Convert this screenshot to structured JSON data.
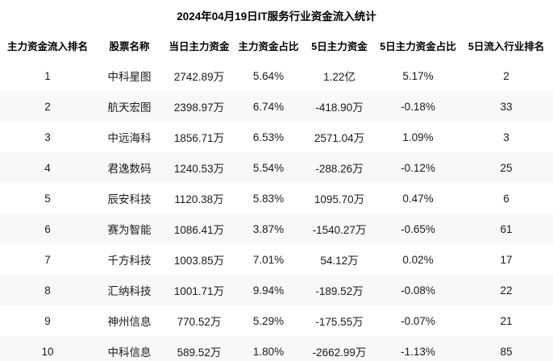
{
  "title": "2024年04月19日IT服务行业资金流入统计",
  "colors": {
    "row_alt_bg": "#f7f8fa",
    "text": "#1a1a1a",
    "title_text": "#000000"
  },
  "table": {
    "columns": [
      {
        "key": "rank",
        "label": "主力资金流入排名"
      },
      {
        "key": "name",
        "label": "股票名称"
      },
      {
        "key": "today_main",
        "label": "当日主力资金"
      },
      {
        "key": "main_pct",
        "label": "主力资金占比"
      },
      {
        "key": "five_day_main",
        "label": "5日主力资金"
      },
      {
        "key": "five_day_pct",
        "label": "5日主力资金占比"
      },
      {
        "key": "five_day_rank",
        "label": "5日流入行业排名"
      }
    ],
    "rows": [
      {
        "rank": "1",
        "name": "中科星图",
        "today_main": "2742.89万",
        "main_pct": "5.64%",
        "five_day_main": "1.22亿",
        "five_day_pct": "5.17%",
        "five_day_rank": "2"
      },
      {
        "rank": "2",
        "name": "航天宏图",
        "today_main": "2398.97万",
        "main_pct": "6.74%",
        "five_day_main": "-418.90万",
        "five_day_pct": "-0.18%",
        "five_day_rank": "33"
      },
      {
        "rank": "3",
        "name": "中远海科",
        "today_main": "1856.71万",
        "main_pct": "6.53%",
        "five_day_main": "2571.04万",
        "five_day_pct": "1.09%",
        "five_day_rank": "3"
      },
      {
        "rank": "4",
        "name": "君逸数码",
        "today_main": "1240.53万",
        "main_pct": "5.54%",
        "five_day_main": "-288.26万",
        "five_day_pct": "-0.12%",
        "five_day_rank": "25"
      },
      {
        "rank": "5",
        "name": "辰安科技",
        "today_main": "1120.38万",
        "main_pct": "5.83%",
        "five_day_main": "1095.70万",
        "five_day_pct": "0.47%",
        "five_day_rank": "6"
      },
      {
        "rank": "6",
        "name": "赛为智能",
        "today_main": "1086.41万",
        "main_pct": "3.87%",
        "five_day_main": "-1540.27万",
        "five_day_pct": "-0.65%",
        "five_day_rank": "61"
      },
      {
        "rank": "7",
        "name": "千方科技",
        "today_main": "1003.85万",
        "main_pct": "7.01%",
        "five_day_main": "54.12万",
        "five_day_pct": "0.02%",
        "five_day_rank": "17"
      },
      {
        "rank": "8",
        "name": "汇纳科技",
        "today_main": "1001.71万",
        "main_pct": "9.94%",
        "five_day_main": "-189.52万",
        "five_day_pct": "-0.08%",
        "five_day_rank": "22"
      },
      {
        "rank": "9",
        "name": "神州信息",
        "today_main": "770.52万",
        "main_pct": "5.29%",
        "five_day_main": "-175.55万",
        "five_day_pct": "-0.07%",
        "five_day_rank": "21"
      },
      {
        "rank": "10",
        "name": "中科信息",
        "today_main": "589.52万",
        "main_pct": "1.80%",
        "five_day_main": "-2662.99万",
        "five_day_pct": "-1.13%",
        "five_day_rank": "85"
      }
    ]
  }
}
